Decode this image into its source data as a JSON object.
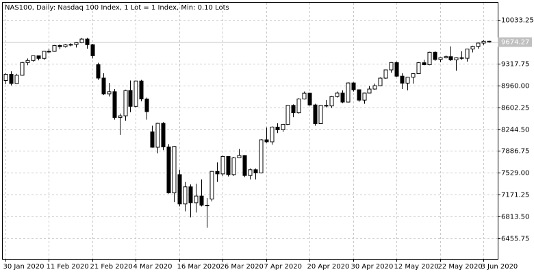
{
  "chart_data": {
    "type": "candlestick",
    "title": "NAS100, Daily:  Nasdaq 100 Index, 1 Lot = 1 Index, Min: 0.10 Lots",
    "categories": [
      "30 Jan 2020",
      null,
      null,
      null,
      null,
      null,
      null,
      null,
      "11 Feb 2020",
      null,
      null,
      null,
      null,
      null,
      null,
      null,
      "21 Feb 2020",
      null,
      null,
      null,
      null,
      null,
      null,
      null,
      "4 Mar 2020",
      null,
      null,
      null,
      null,
      null,
      null,
      null,
      "16 Mar 2020",
      null,
      null,
      null,
      null,
      null,
      null,
      null,
      "26 Mar 2020",
      null,
      null,
      null,
      null,
      null,
      null,
      null,
      "7 Apr 2020",
      null,
      null,
      null,
      null,
      null,
      null,
      null,
      "20 Apr 2020",
      null,
      null,
      null,
      null,
      null,
      null,
      null,
      "30 Apr 2020",
      null,
      null,
      null,
      null,
      null,
      null,
      null,
      "12 May 2020",
      null,
      null,
      null,
      null,
      null,
      null,
      null,
      "22 May 2020",
      null,
      null,
      null,
      null,
      null,
      null,
      null,
      "3 Jun 2020",
      null
    ],
    "open": [
      9040,
      9142,
      8992,
      9126,
      9334,
      9368,
      9445,
      9402,
      9518,
      9517,
      9613,
      9595,
      9623,
      9630,
      9660,
      9718,
      9626,
      9300,
      9080,
      8822,
      8857,
      8436,
      8462,
      8877,
      8617,
      9032,
      8738,
      8200,
      7948,
      8339,
      7953,
      7201,
      7500,
      7020,
      7300,
      7040,
      7150,
      7000,
      7100,
      7553,
      7512,
      7797,
      7500,
      7775,
      7813,
      7486,
      7580,
      7528,
      8070,
      8037,
      8278,
      8235,
      8322,
      8633,
      8512,
      8738,
      8832,
      8640,
      8334,
      8633,
      8624,
      8780,
      8834,
      8687,
      9000,
      8889,
      8719,
      8834,
      8900,
      8955,
      9079,
      9214,
      9334,
      9111,
      8997,
      9094,
      9152,
      9331,
      9298,
      9502,
      9384,
      9413,
      9430,
      9378,
      9413,
      9404,
      9555,
      9598,
      9652,
      9682
    ],
    "high": [
      9160,
      9190,
      9150,
      9345,
      9400,
      9450,
      9450,
      9525,
      9560,
      9620,
      9630,
      9635,
      9650,
      9670,
      9735,
      9740,
      9640,
      9330,
      9160,
      9000,
      8900,
      8500,
      8890,
      9040,
      9040,
      9050,
      8760,
      8300,
      8350,
      8360,
      8000,
      7970,
      7580,
      7380,
      7340,
      7350,
      7420,
      7120,
      7560,
      7700,
      7810,
      7800,
      7790,
      7920,
      7820,
      7600,
      7600,
      8080,
      8270,
      8290,
      8340,
      8330,
      8640,
      8650,
      8750,
      8860,
      8840,
      8660,
      8640,
      8720,
      8790,
      8860,
      8880,
      9010,
      9010,
      8890,
      8840,
      8950,
      8990,
      9090,
      9220,
      9340,
      9350,
      9160,
      9100,
      9160,
      9340,
      9380,
      9510,
      9520,
      9420,
      9450,
      9600,
      9420,
      9520,
      9560,
      9610,
      9660,
      9700,
      9690
    ],
    "low": [
      8980,
      8960,
      8990,
      9120,
      9290,
      9350,
      9370,
      9380,
      9490,
      9510,
      9550,
      9580,
      9600,
      9580,
      9650,
      9560,
      9400,
      9050,
      8800,
      8780,
      8400,
      8150,
      8380,
      8520,
      8600,
      8700,
      8400,
      7940,
      7850,
      7900,
      7190,
      7050,
      6980,
      6900,
      6800,
      6880,
      6980,
      6630,
      7060,
      7380,
      7480,
      7470,
      7480,
      7770,
      7460,
      7420,
      7420,
      7520,
      8020,
      7990,
      8180,
      8200,
      8310,
      8440,
      8500,
      8730,
      8630,
      8300,
      8330,
      8600,
      8590,
      8760,
      8670,
      8680,
      8860,
      8690,
      8660,
      8830,
      8890,
      8950,
      9070,
      9170,
      9100,
      8900,
      8880,
      8990,
      9150,
      9290,
      9290,
      9360,
      9340,
      9400,
      9360,
      9200,
      9380,
      9350,
      9500,
      9560,
      9620,
      9660
    ],
    "close": [
      9142,
      8992,
      9126,
      9334,
      9368,
      9445,
      9402,
      9518,
      9517,
      9613,
      9595,
      9623,
      9630,
      9660,
      9718,
      9626,
      9446,
      9080,
      8822,
      8857,
      8436,
      8462,
      8877,
      8617,
      9032,
      8738,
      8531,
      7948,
      8339,
      7953,
      7201,
      7961,
      7020,
      7300,
      7040,
      7150,
      7000,
      6994,
      7553,
      7512,
      7797,
      7500,
      7775,
      7813,
      7486,
      7580,
      7528,
      8070,
      8037,
      8278,
      8235,
      8322,
      8633,
      8512,
      8738,
      8832,
      8640,
      8334,
      8633,
      8624,
      8780,
      8834,
      8687,
      9000,
      8889,
      8719,
      8834,
      8900,
      8955,
      9079,
      9214,
      9334,
      9111,
      8997,
      9094,
      9152,
      9331,
      9298,
      9502,
      9384,
      9413,
      9430,
      9378,
      9413,
      9404,
      9555,
      9598,
      9652,
      9682,
      9674.27
    ],
    "up_color": "#ffffff",
    "down_color": "#000000",
    "edge_color": "#000000",
    "price_line_color": "#c0c0c0",
    "ylim": [
      6120.4,
      10312.7
    ],
    "yticks": [
      10033.25,
      9317.75,
      {
        "value": 8960,
        "label": "8960.00"
      },
      8602.25,
      {
        "value": 8244.5,
        "label": "8244.50"
      },
      7886.75,
      {
        "value": 7529,
        "label": "7529.00"
      },
      7171.25,
      {
        "value": 6813.5,
        "label": "6813.50"
      },
      6455.75
    ],
    "grid": true
  }
}
